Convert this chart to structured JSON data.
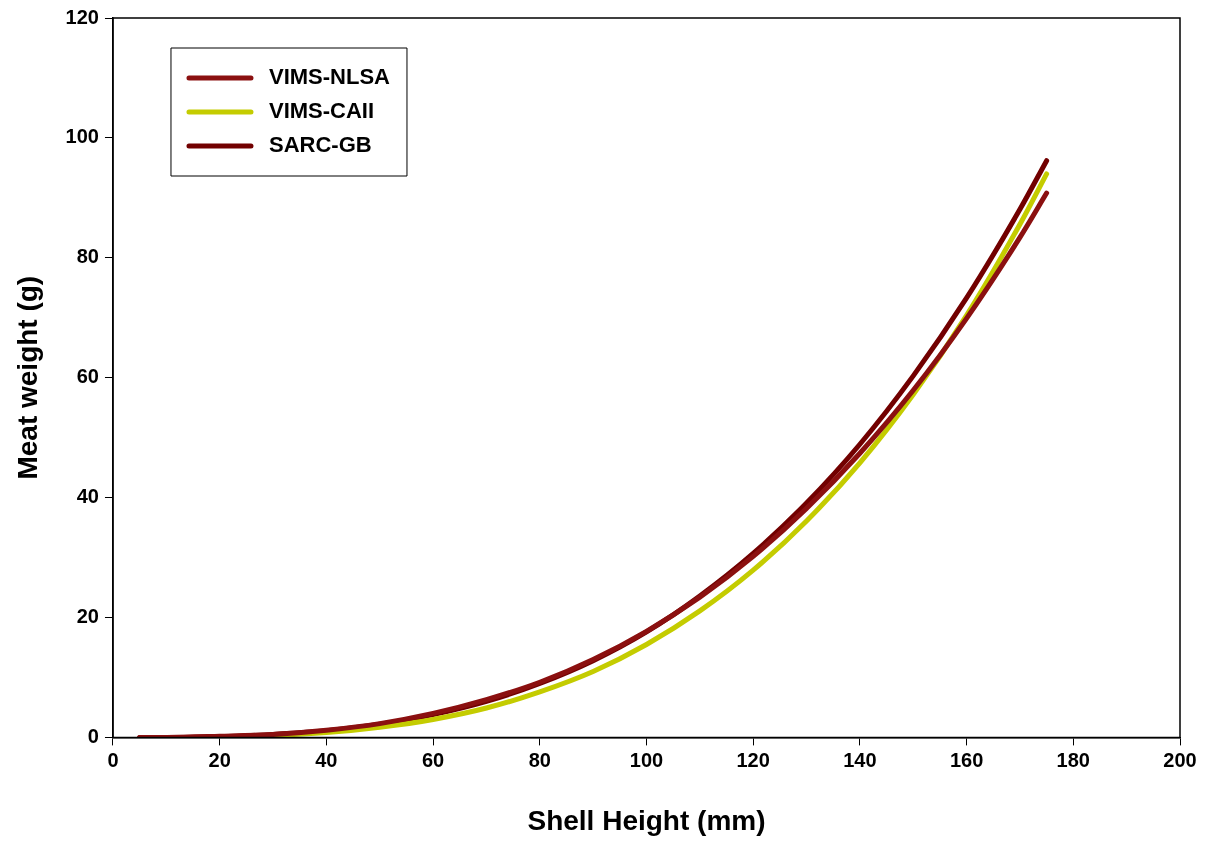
{
  "chart_data": {
    "type": "line",
    "xlabel": "Shell Height (mm)",
    "ylabel": "Meat weight (g)",
    "x": [
      5,
      10,
      20,
      30,
      40,
      50,
      60,
      70,
      80,
      90,
      100,
      110,
      120,
      130,
      140,
      150,
      160,
      170,
      175
    ],
    "series": [
      {
        "name": "VIMS-NLSA",
        "color": "#8b1010",
        "values": [
          0,
          0,
          0.2,
          0.5,
          1.2,
          2.3,
          4.0,
          6.3,
          9.2,
          13.0,
          17.7,
          23.4,
          30.2,
          38.2,
          47.4,
          57.9,
          69.9,
          83.4,
          90.8
        ]
      },
      {
        "name": "VIMS-CAII",
        "color": "#c4cc00",
        "values": [
          null,
          null,
          0.1,
          0.3,
          0.8,
          1.7,
          3.0,
          4.9,
          7.6,
          11.0,
          15.5,
          21.1,
          27.9,
          36.1,
          45.8,
          57.2,
          70.4,
          85.6,
          94
        ]
      },
      {
        "name": "SARC-GB",
        "color": "#720000",
        "values": [
          0,
          0,
          0.1,
          0.5,
          1.1,
          2.2,
          3.8,
          6.0,
          9.0,
          12.8,
          17.6,
          23.6,
          30.7,
          39.1,
          48.9,
          60.3,
          73.3,
          88.1,
          96.2
        ]
      }
    ],
    "xlim": [
      0,
      200
    ],
    "xticks": [
      0,
      20,
      40,
      60,
      80,
      100,
      120,
      140,
      160,
      180,
      200
    ],
    "ylim": [
      0,
      120
    ],
    "yticks": [
      0,
      20,
      40,
      60,
      80,
      100,
      120
    ],
    "grid": false,
    "legend": "top left",
    "marker": "none",
    "line_style": "solid"
  }
}
